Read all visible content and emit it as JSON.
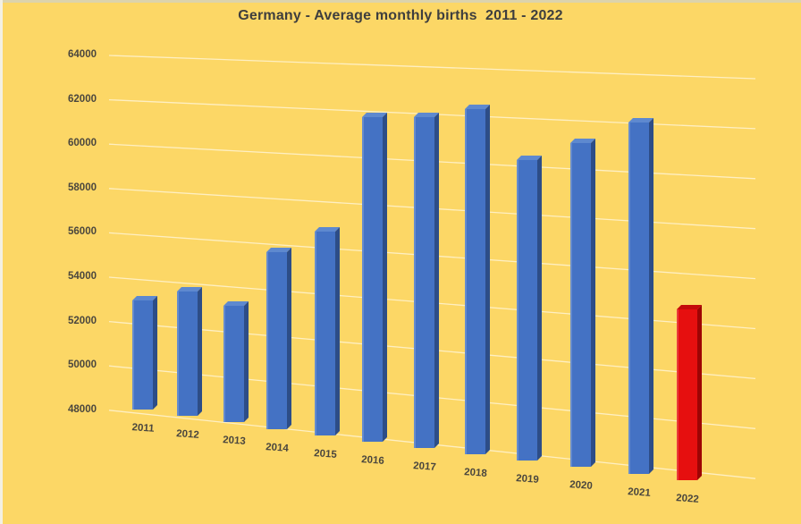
{
  "title": "Germany - Average monthly births  2011 - 2022",
  "colors": {
    "background": "#FCD766",
    "bar_blue_front": "#4472C4",
    "bar_blue_top": "#5E89CF",
    "bar_blue_side": "#2D4D87",
    "bar_red_front": "#E60F0F",
    "bar_red_top": "#C40A0A",
    "bar_red_side": "#9E0404",
    "title_text": "#3E3E3E",
    "axis_text": "#4A463E",
    "gridline": "rgba(255,255,255,0.6)"
  },
  "chart_data": {
    "type": "bar",
    "style": "3d-column",
    "title": "Germany - Average monthly births  2011 - 2022",
    "categories": [
      "2011",
      "2012",
      "2013",
      "2014",
      "2015",
      "2016",
      "2017",
      "2018",
      "2019",
      "2020",
      "2021",
      "2022"
    ],
    "values": [
      52900,
      53500,
      53100,
      55700,
      56800,
      61900,
      62000,
      62500,
      60500,
      61300,
      62300,
      54900
    ],
    "highlight": {
      "category": "2022",
      "reason": "last year shown in red",
      "color": "#E60F0F"
    },
    "default_bar_color": "#4472C4",
    "xlabel": "",
    "ylabel": "",
    "yticks": [
      "64000",
      "62000",
      "60000",
      "58000",
      "56000",
      "54000",
      "52000",
      "50000",
      "48000"
    ],
    "ylim": [
      48000,
      64000
    ],
    "grid": true,
    "legend": false,
    "background": "#FCD766"
  }
}
